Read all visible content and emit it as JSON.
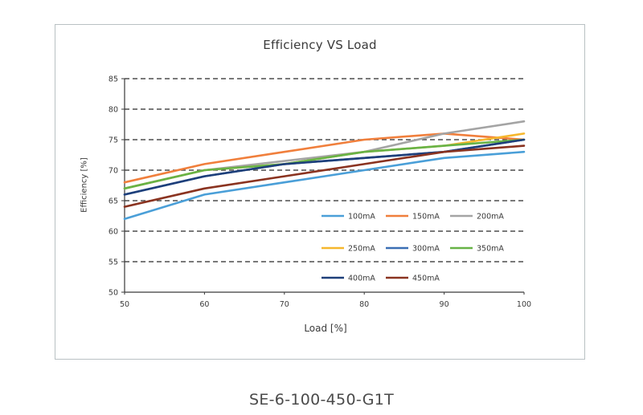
{
  "caption": "SE-6-100-450-G1T",
  "chart_data": {
    "type": "line",
    "title": "Efficiency VS Load",
    "xlabel": "Load [%]",
    "ylabel": "Efficiency [%]",
    "xlim": [
      50,
      100
    ],
    "ylim": [
      50,
      85
    ],
    "x_ticks": [
      50,
      60,
      70,
      80,
      90,
      100
    ],
    "y_ticks": [
      50,
      55,
      60,
      65,
      70,
      75,
      80,
      85
    ],
    "grid": "horizontal dashed",
    "legend_position": "lower-right",
    "x": [
      50,
      60,
      70,
      80,
      90,
      100
    ],
    "series": [
      {
        "name": "100mA",
        "color": "#4a9fd8",
        "values": [
          62,
          66,
          68,
          70,
          72,
          73
        ]
      },
      {
        "name": "150mA",
        "color": "#f07f3c",
        "values": [
          68,
          71,
          73,
          75,
          76,
          75
        ]
      },
      {
        "name": "200mA",
        "color": "#a4a4a4",
        "values": [
          67,
          70,
          71.5,
          73,
          76,
          78
        ]
      },
      {
        "name": "250mA",
        "color": "#f6b72d",
        "values": [
          67,
          70,
          71,
          73,
          74,
          76
        ]
      },
      {
        "name": "300mA",
        "color": "#3a6fb4",
        "values": [
          66,
          69,
          71,
          72,
          73,
          75
        ]
      },
      {
        "name": "350mA",
        "color": "#67b346",
        "values": [
          67,
          70,
          71,
          73,
          74,
          75
        ]
      },
      {
        "name": "400mA",
        "color": "#1e3f7a",
        "values": [
          66,
          69,
          71,
          72,
          73,
          75
        ]
      },
      {
        "name": "450mA",
        "color": "#8a3320",
        "values": [
          64,
          67,
          69,
          71,
          73,
          74
        ]
      }
    ]
  }
}
